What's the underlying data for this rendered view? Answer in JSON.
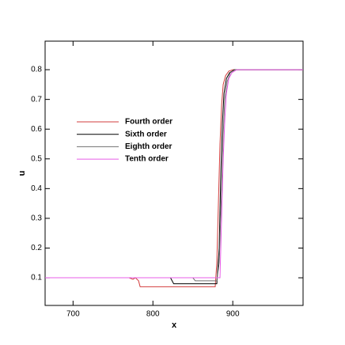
{
  "chart_data": {
    "type": "line",
    "xlabel": "x",
    "ylabel": "u",
    "xlim": [
      665,
      988
    ],
    "ylim": [
      0.007,
      0.896
    ],
    "xticks": [
      700,
      800,
      900
    ],
    "yticks": [
      0.1,
      0.2,
      0.3,
      0.4,
      0.5,
      0.6,
      0.7,
      0.8
    ],
    "series": [
      {
        "name": "Fourth order",
        "color": "#d23c3c",
        "x": [
          665,
          700,
          740,
          770,
          775,
          778,
          782,
          784,
          800,
          850,
          878,
          880,
          882,
          884,
          886,
          888,
          891,
          895,
          900,
          910,
          988
        ],
        "values": [
          0.1,
          0.1,
          0.1,
          0.1,
          0.095,
          0.1,
          0.09,
          0.07,
          0.07,
          0.07,
          0.07,
          0.15,
          0.35,
          0.55,
          0.68,
          0.75,
          0.78,
          0.795,
          0.8,
          0.8,
          0.8
        ]
      },
      {
        "name": "Sixth order",
        "color": "#000000",
        "x": [
          665,
          700,
          750,
          800,
          822,
          826,
          850,
          880,
          883,
          885,
          887,
          889,
          892,
          896,
          902,
          912,
          988
        ],
        "values": [
          0.1,
          0.1,
          0.1,
          0.1,
          0.1,
          0.08,
          0.08,
          0.08,
          0.2,
          0.45,
          0.62,
          0.72,
          0.77,
          0.79,
          0.8,
          0.8,
          0.8
        ]
      },
      {
        "name": "Eighth order",
        "color": "#707070",
        "x": [
          665,
          750,
          800,
          850,
          853,
          880,
          883,
          886,
          888,
          890,
          893,
          897,
          903,
          915,
          988
        ],
        "values": [
          0.1,
          0.1,
          0.1,
          0.1,
          0.09,
          0.09,
          0.15,
          0.4,
          0.58,
          0.7,
          0.76,
          0.79,
          0.8,
          0.8,
          0.8
        ]
      },
      {
        "name": "Tenth order",
        "color": "#e85ce8",
        "x": [
          665,
          750,
          850,
          880,
          884,
          886,
          888,
          890,
          892,
          895,
          899,
          905,
          918,
          988
        ],
        "values": [
          0.1,
          0.1,
          0.1,
          0.1,
          0.1,
          0.3,
          0.5,
          0.63,
          0.72,
          0.77,
          0.79,
          0.8,
          0.8,
          0.8
        ]
      }
    ]
  }
}
